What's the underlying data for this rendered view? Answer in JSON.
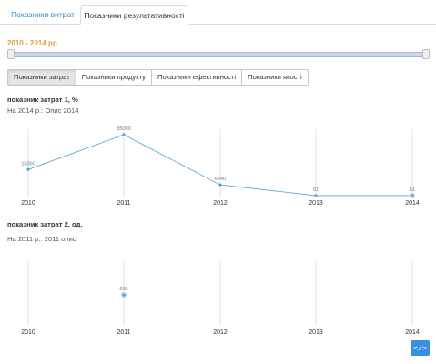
{
  "tabs": [
    {
      "label": "Показники витрат",
      "active": false
    },
    {
      "label": "Показники результативності",
      "active": true
    }
  ],
  "range": {
    "label": "2010 - 2014 рр.",
    "from": 2010,
    "to": 2014
  },
  "indicator_buttons": [
    {
      "label": "Показники затрат",
      "active": true
    },
    {
      "label": "Показники продукту",
      "active": false
    },
    {
      "label": "Показники ефективності",
      "active": false
    },
    {
      "label": "Показники якості",
      "active": false
    }
  ],
  "charts": [
    {
      "title": "показник затрат 1, %",
      "subtitle": "На 2014 р.: Опис 2014"
    },
    {
      "title": "показник затрат 2, од.",
      "subtitle": "На 2011 р.: 2011 опис"
    }
  ],
  "chart_data": [
    {
      "type": "line",
      "categories": [
        "2010",
        "2011",
        "2012",
        "2013",
        "2014"
      ],
      "series": [
        {
          "values": [
            15000,
            35000,
            6240,
            61,
            61
          ]
        }
      ],
      "data_labels": [
        "15000",
        "35000",
        "6240",
        "61",
        "61"
      ],
      "ylim": [
        0,
        35000
      ],
      "grid": "vertical",
      "color": "#5aa8d2",
      "highlight_index": 4
    },
    {
      "type": "scatter",
      "categories": [
        "2010",
        "2011",
        "2012",
        "2013",
        "2014"
      ],
      "series": [
        {
          "values": [
            null,
            630,
            null,
            null,
            null
          ]
        }
      ],
      "data_labels": [
        "",
        "630",
        "",
        "",
        ""
      ],
      "grid": "vertical",
      "color": "#5aa8d2",
      "highlight_index": 1
    }
  ],
  "code_button": {
    "icon": "code-icon",
    "label": "</>"
  }
}
